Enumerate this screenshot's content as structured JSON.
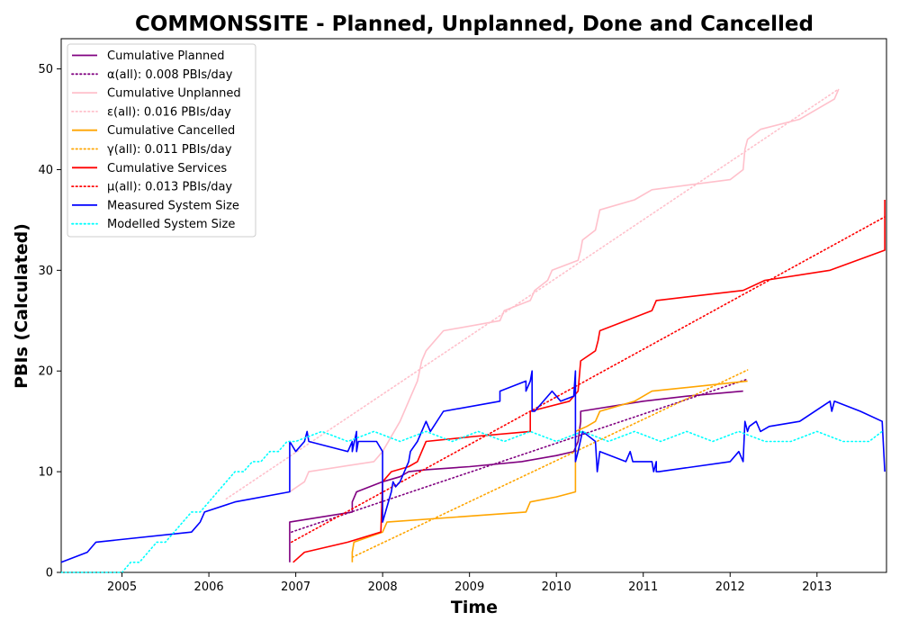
{
  "chart_data": {
    "type": "line",
    "title": "COMMONSSITE - Planned, Unplanned, Done  and Cancelled",
    "xlabel": "Time",
    "ylabel": "PBIs (Calculated)",
    "xlim": [
      2004.3,
      2013.8
    ],
    "ylim": [
      0,
      53
    ],
    "x_ticks": [
      2005,
      2006,
      2007,
      2008,
      2009,
      2010,
      2011,
      2012,
      2013
    ],
    "x_tick_labels": [
      "2005",
      "2006",
      "2007",
      "2008",
      "2009",
      "2010",
      "2011",
      "2012",
      "2013"
    ],
    "y_ticks": [
      0,
      10,
      20,
      30,
      40,
      50
    ],
    "y_tick_labels": [
      "0",
      "10",
      "20",
      "30",
      "40",
      "50"
    ],
    "grid": false,
    "legend_position": "top-left",
    "series": [
      {
        "name": "Cumulative Planned",
        "color": "#800080",
        "style": "solid",
        "x": [
          2006.93,
          2006.93,
          2006.93,
          2007.65,
          2007.65,
          2007.7,
          2008.0,
          2008.2,
          2008.3,
          2008.5,
          2009.0,
          2009.6,
          2010.0,
          2010.2,
          2010.25,
          2010.28,
          2010.28,
          2011.0,
          2011.5,
          2012.15
        ],
        "y": [
          1,
          1,
          5,
          6,
          7,
          8,
          9,
          9.5,
          10,
          10.2,
          10.5,
          11,
          11.6,
          12,
          13,
          15,
          16,
          17,
          17.5,
          18
        ]
      },
      {
        "name": "α(all): 0.008 PBIs/day",
        "color": "#800080",
        "style": "dotted",
        "x": [
          2006.95,
          2012.2
        ],
        "y": [
          4.0,
          19.2
        ]
      },
      {
        "name": "Cumulative Unplanned",
        "color": "#ffc0cb",
        "style": "solid",
        "x": [
          2006.93,
          2007.1,
          2007.15,
          2007.9,
          2008.0,
          2008.2,
          2008.3,
          2008.4,
          2008.45,
          2008.5,
          2008.7,
          2009.35,
          2009.4,
          2009.7,
          2009.75,
          2009.9,
          2009.95,
          2010.25,
          2010.28,
          2010.3,
          2010.45,
          2010.5,
          2010.9,
          2011.1,
          2012.0,
          2012.15,
          2012.17,
          2012.2,
          2012.35,
          2012.8,
          2013.2,
          2013.25
        ],
        "y": [
          8,
          9,
          10,
          11,
          12,
          15,
          17,
          19,
          21,
          22,
          24,
          25,
          26,
          27,
          28,
          29,
          30,
          31,
          32,
          33,
          34,
          36,
          37,
          38,
          39,
          40,
          42,
          43,
          44,
          45,
          47,
          48
        ]
      },
      {
        "name": "ε(all): 0.016 PBIs/day",
        "color": "#ffc0cb",
        "style": "dotted",
        "x": [
          2006.2,
          2013.25
        ],
        "y": [
          7.3,
          48.0
        ]
      },
      {
        "name": "Cumulative Cancelled",
        "color": "#ffa500",
        "style": "solid",
        "x": [
          2007.65,
          2007.65,
          2007.67,
          2008.0,
          2008.05,
          2009.65,
          2009.7,
          2010.0,
          2010.22,
          2010.22,
          2010.35,
          2010.45,
          2010.5,
          2010.9,
          2011.1,
          2012.2
        ],
        "y": [
          1,
          2,
          3,
          4,
          5,
          6,
          7,
          7.5,
          8,
          14,
          14.5,
          15,
          16,
          17,
          18,
          19
        ]
      },
      {
        "name": "γ(all): 0.011 PBIs/day",
        "color": "#ffa500",
        "style": "dotted",
        "x": [
          2007.65,
          2012.2
        ],
        "y": [
          1.5,
          20.1
        ]
      },
      {
        "name": "Cumulative Services",
        "color": "#ff0000",
        "style": "solid",
        "x": [
          2006.97,
          2007.1,
          2007.6,
          2007.98,
          2008.0,
          2008.1,
          2008.3,
          2008.4,
          2008.5,
          2009.05,
          2009.7,
          2009.7,
          2010.15,
          2010.25,
          2010.28,
          2010.45,
          2010.48,
          2010.5,
          2011.1,
          2011.15,
          2012.15,
          2012.4,
          2013.15,
          2013.78,
          2013.78
        ],
        "y": [
          1,
          2,
          3,
          4,
          9,
          10,
          10.5,
          11,
          13,
          13.5,
          14,
          16,
          17,
          18,
          21,
          22,
          23,
          24,
          26,
          27,
          28,
          29,
          30,
          32,
          37
        ]
      },
      {
        "name": "μ(all): 0.013 PBIs/day",
        "color": "#ff0000",
        "style": "dotted",
        "x": [
          2006.95,
          2013.78
        ],
        "y": [
          3.0,
          35.3
        ]
      },
      {
        "name": "Measured System Size",
        "color": "#0000ff",
        "style": "solid",
        "x": [
          2004.3,
          2004.6,
          2004.7,
          2005.8,
          2005.9,
          2005.95,
          2006.3,
          2006.93,
          2006.93,
          2007.0,
          2007.1,
          2007.13,
          2007.15,
          2007.6,
          2007.65,
          2007.65,
          2007.7,
          2007.7,
          2007.72,
          2007.93,
          2008.0,
          2008.0,
          2008.1,
          2008.12,
          2008.15,
          2008.2,
          2008.3,
          2008.32,
          2008.4,
          2008.5,
          2008.55,
          2008.7,
          2009.35,
          2009.35,
          2009.65,
          2009.65,
          2009.7,
          2009.72,
          2009.72,
          2009.75,
          2009.95,
          2010.0,
          2010.05,
          2010.2,
          2010.22,
          2010.22,
          2010.25,
          2010.3,
          2010.45,
          2010.47,
          2010.5,
          2010.8,
          2010.85,
          2010.88,
          2011.1,
          2011.12,
          2011.15,
          2011.15,
          2011.18,
          2012.0,
          2012.1,
          2012.15,
          2012.17,
          2012.2,
          2012.22,
          2012.3,
          2012.35,
          2012.45,
          2012.8,
          2013.15,
          2013.17,
          2013.2,
          2013.5,
          2013.75,
          2013.78
        ],
        "y": [
          1,
          2,
          3,
          4,
          5,
          6,
          7,
          8,
          13,
          12,
          13,
          14,
          13,
          12,
          13,
          12,
          14,
          12,
          13,
          13,
          12,
          5,
          8,
          9,
          8.5,
          9,
          11,
          12,
          13,
          15,
          14,
          16,
          17,
          18,
          19,
          18,
          19,
          20,
          16,
          16,
          18,
          17.5,
          17,
          17.5,
          20,
          11,
          12,
          14,
          13,
          10,
          12,
          11,
          12,
          11,
          11,
          10,
          11,
          10,
          10,
          11,
          12,
          11,
          15,
          14,
          14.5,
          15,
          14,
          14.5,
          15,
          17,
          16,
          17,
          16,
          15,
          10
        ]
      },
      {
        "name": "Modelled System Size",
        "color": "#00ffff",
        "style": "dotted",
        "x": [
          2004.3,
          2005.0,
          2005.1,
          2005.2,
          2005.3,
          2005.4,
          2005.5,
          2005.6,
          2005.7,
          2005.8,
          2005.9,
          2006.0,
          2006.1,
          2006.2,
          2006.3,
          2006.4,
          2006.5,
          2006.6,
          2006.7,
          2006.8,
          2006.9,
          2007.0,
          2007.3,
          2007.6,
          2007.9,
          2008.2,
          2008.5,
          2008.8,
          2009.1,
          2009.4,
          2009.7,
          2010.0,
          2010.3,
          2010.6,
          2010.9,
          2011.2,
          2011.5,
          2011.8,
          2012.1,
          2012.4,
          2012.7,
          2013.0,
          2013.3,
          2013.6,
          2013.75
        ],
        "y": [
          0,
          0,
          1,
          1,
          2,
          3,
          3,
          4,
          5,
          6,
          6,
          7,
          8,
          9,
          10,
          10,
          11,
          11,
          12,
          12,
          13,
          13,
          14,
          13,
          14,
          13,
          14,
          13,
          14,
          13,
          14,
          13,
          14,
          13,
          14,
          13,
          14,
          13,
          14,
          13,
          13,
          14,
          13,
          13,
          14
        ]
      }
    ]
  }
}
